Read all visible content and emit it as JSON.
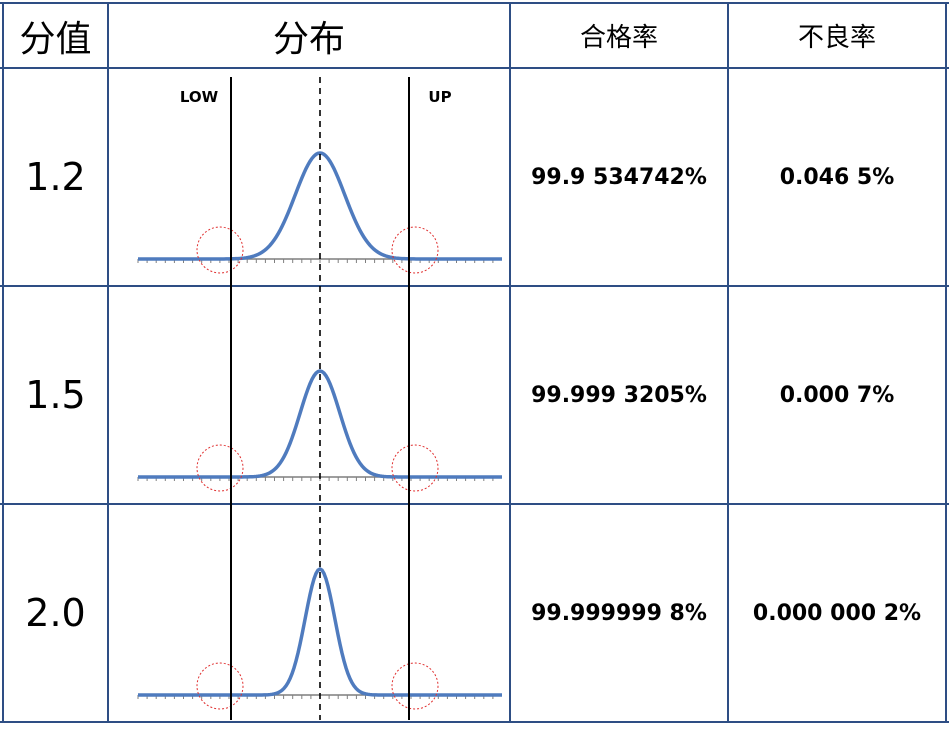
{
  "table": {
    "headers": {
      "score": "分值",
      "distribution": "分布",
      "pass_rate": "合格率",
      "defect_rate": "不良率"
    },
    "rows": [
      {
        "score": "1.2",
        "sigma": 1.2,
        "pass_rate": "99.9 534742%",
        "defect_rate": "0.046 5%"
      },
      {
        "score": "1.5",
        "sigma": 1.5,
        "pass_rate": "99.999 3205%",
        "defect_rate": "0.000 7%"
      },
      {
        "score": "2.0",
        "sigma": 2.0,
        "pass_rate": "99.999999 8%",
        "defect_rate": "0.000 000 2%"
      }
    ],
    "limit_labels": {
      "lower": "LOW",
      "upper": "UP"
    }
  },
  "colors": {
    "grid": "#2e4e84",
    "curve": "#4f7bbe",
    "axis": "#7f7f7f",
    "circle": "#e03030",
    "limit_line": "#000000"
  }
}
